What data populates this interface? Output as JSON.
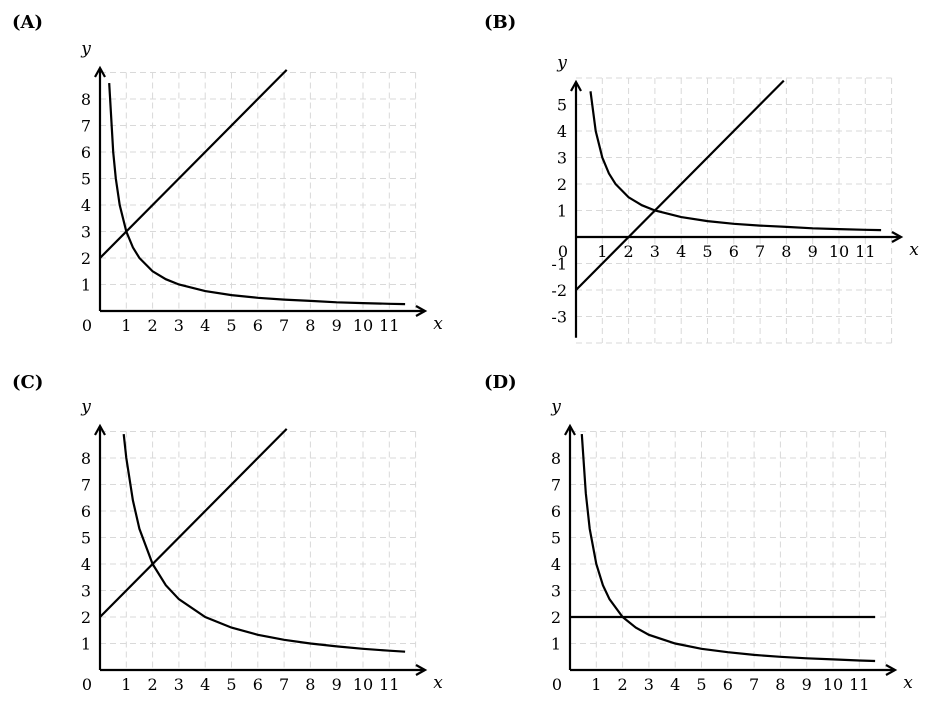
{
  "chart_data": [
    {
      "type": "line",
      "panel": "(A)",
      "xlabel": "x",
      "ylabel": "y",
      "xlim": [
        0,
        12
      ],
      "ylim": [
        0,
        9
      ],
      "x_ticks": [
        "0",
        "1",
        "2",
        "3",
        "4",
        "5",
        "6",
        "7",
        "8",
        "9",
        "10",
        "11"
      ],
      "y_ticks": [
        "1",
        "2",
        "3",
        "4",
        "5",
        "6",
        "7",
        "8"
      ],
      "grid": true,
      "series": [
        {
          "x": [
            0,
            7.1
          ],
          "y": [
            2,
            9.1
          ]
        },
        {
          "x": [
            0.35,
            0.5,
            0.6,
            0.75,
            1,
            1.25,
            1.5,
            2,
            2.5,
            3,
            4,
            5,
            6,
            7,
            8,
            9,
            10,
            11,
            11.6
          ],
          "y": [
            8.6,
            6,
            5,
            4,
            3,
            2.4,
            2,
            1.5,
            1.2,
            1,
            0.75,
            0.6,
            0.5,
            0.43,
            0.38,
            0.33,
            0.3,
            0.27,
            0.26
          ]
        }
      ]
    },
    {
      "type": "line",
      "panel": "(B)",
      "xlabel": "x",
      "ylabel": "y",
      "xlim": [
        0,
        12
      ],
      "ylim": [
        -4,
        6
      ],
      "x_ticks": [
        "0",
        "1",
        "2",
        "3",
        "4",
        "5",
        "6",
        "7",
        "8",
        "9",
        "10",
        "11"
      ],
      "y_ticks": [
        "-3",
        "-2",
        "-1",
        "1",
        "2",
        "3",
        "4",
        "5"
      ],
      "grid": true,
      "series": [
        {
          "x": [
            0,
            7.9
          ],
          "y": [
            -2,
            5.9
          ]
        },
        {
          "x": [
            0.55,
            0.75,
            1,
            1.25,
            1.5,
            2,
            2.5,
            3,
            4,
            5,
            6,
            7,
            8,
            9,
            10,
            11,
            11.6
          ],
          "y": [
            5.5,
            4,
            3,
            2.4,
            2,
            1.5,
            1.2,
            1,
            0.75,
            0.6,
            0.5,
            0.43,
            0.38,
            0.33,
            0.3,
            0.27,
            0.26
          ]
        }
      ]
    },
    {
      "type": "line",
      "panel": "(C)",
      "xlabel": "x",
      "ylabel": "y",
      "xlim": [
        0,
        12
      ],
      "ylim": [
        0,
        9
      ],
      "x_ticks": [
        "0",
        "1",
        "2",
        "3",
        "4",
        "5",
        "6",
        "7",
        "8",
        "9",
        "10",
        "11"
      ],
      "y_ticks": [
        "1",
        "2",
        "3",
        "4",
        "5",
        "6",
        "7",
        "8"
      ],
      "grid": true,
      "series": [
        {
          "x": [
            0,
            7.1
          ],
          "y": [
            2,
            9.1
          ]
        },
        {
          "x": [
            0.9,
            1,
            1.25,
            1.5,
            2,
            2.5,
            3,
            4,
            5,
            6,
            7,
            8,
            9,
            10,
            11,
            11.6
          ],
          "y": [
            8.9,
            8,
            6.4,
            5.33,
            4,
            3.2,
            2.67,
            2,
            1.6,
            1.33,
            1.14,
            1,
            0.89,
            0.8,
            0.73,
            0.69
          ]
        }
      ]
    },
    {
      "type": "line",
      "panel": "(D)",
      "xlabel": "x",
      "ylabel": "y",
      "xlim": [
        0,
        12
      ],
      "ylim": [
        0,
        9
      ],
      "x_ticks": [
        "0",
        "1",
        "2",
        "3",
        "4",
        "5",
        "6",
        "7",
        "8",
        "9",
        "10",
        "11"
      ],
      "y_ticks": [
        "1",
        "2",
        "3",
        "4",
        "5",
        "6",
        "7",
        "8"
      ],
      "grid": true,
      "series": [
        {
          "x": [
            0,
            11.6
          ],
          "y": [
            2,
            2
          ]
        },
        {
          "x": [
            0.45,
            0.6,
            0.75,
            1,
            1.25,
            1.5,
            2,
            2.5,
            3,
            4,
            5,
            6,
            7,
            8,
            9,
            10,
            11,
            11.6
          ],
          "y": [
            8.9,
            6.67,
            5.33,
            4,
            3.2,
            2.67,
            2,
            1.6,
            1.33,
            1,
            0.8,
            0.67,
            0.57,
            0.5,
            0.44,
            0.4,
            0.36,
            0.34
          ]
        }
      ]
    }
  ]
}
